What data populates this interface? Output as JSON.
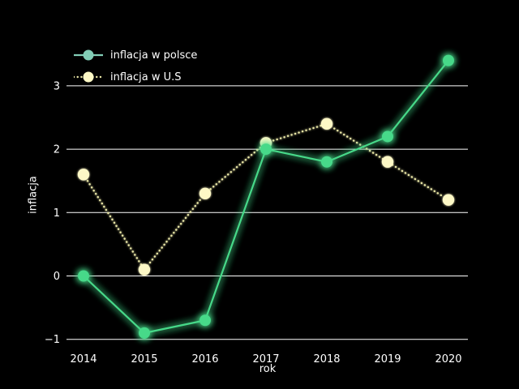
{
  "figure": {
    "background_color": "#000000",
    "text_color": "#ffffff",
    "grid_color": "#ffffff"
  },
  "chart_data": {
    "type": "line",
    "title": "",
    "xlabel": "rok",
    "ylabel": "inflacja",
    "x": [
      2014,
      2015,
      2016,
      2017,
      2018,
      2019,
      2020
    ],
    "x_tick_labels": [
      "2014",
      "2015",
      "2016",
      "2017",
      "2018",
      "2019",
      "2020"
    ],
    "yticks": [
      3,
      2,
      1,
      0,
      -1
    ],
    "ytick_labels": [
      "3",
      "2",
      "1",
      "0",
      "−1"
    ],
    "ylim": [
      -1.35,
      3.65
    ],
    "grid": "horizontal",
    "legend_position": "upper-left",
    "series": [
      {
        "name": "inflacja w polsce",
        "values": [
          0.0,
          -0.9,
          -0.7,
          2.0,
          1.8,
          2.2,
          3.4
        ],
        "color": "#46d989",
        "legend_color": "#82cdb6",
        "line_style": "solid",
        "marker": "circle",
        "glow": true
      },
      {
        "name": "inflacja w U.S",
        "values": [
          1.6,
          0.1,
          1.3,
          2.1,
          2.4,
          1.8,
          1.2
        ],
        "color": "#e9e6a6",
        "marker_color": "#fdf8c6",
        "line_style": "dotted",
        "marker": "circle",
        "glow": true
      }
    ]
  }
}
